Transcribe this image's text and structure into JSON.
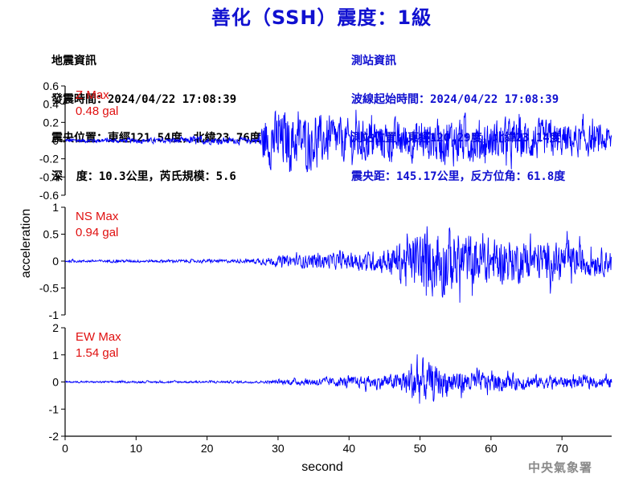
{
  "title": "善化（SSH）震度：1級",
  "quake_info": {
    "header": "地震資訊",
    "origin_time": "發震時間：2024/04/22 17:08:39",
    "epicenter": "震央位置：東經121.54度，北緯23.76度",
    "depth_mag": "深  度：10.3公里，芮氏規模：5.6"
  },
  "station_info": {
    "header": "測站資訊",
    "wave_start": "波線起始時間：2024/04/22 17:08:39",
    "station_pos": "測站位置：東經120.29度，北緯23.14度",
    "distance": "震央距：145.17公里，反方位角：61.8度"
  },
  "agency": "中央氣象署",
  "colors": {
    "trace": "#0000ff",
    "label": "#e01010",
    "title": "#1010d0",
    "axis": "#000000"
  },
  "chart_data": {
    "type": "line",
    "xlabel": "second",
    "ylabel": "acceleration",
    "xlim": [
      0,
      77
    ],
    "xticks": [
      0,
      10,
      20,
      30,
      40,
      50,
      60,
      70
    ],
    "panels": [
      {
        "component": "Z",
        "max_label": "Z Max",
        "max_value": "0.48 gal",
        "ylim": [
          -0.6,
          0.6
        ],
        "yticks": [
          0.6,
          0.4,
          0.2,
          0,
          -0.2,
          -0.4,
          -0.6
        ],
        "ytick_labels": [
          "0.6",
          "0.4",
          "0.2",
          "0",
          "-0.2",
          "-0.4",
          "-0.6"
        ],
        "envelope": [
          [
            0,
            0.03
          ],
          [
            17,
            0.04
          ],
          [
            18,
            0.07
          ],
          [
            20,
            0.05
          ],
          [
            27,
            0.04
          ],
          [
            28,
            0.35
          ],
          [
            30,
            0.42
          ],
          [
            35,
            0.35
          ],
          [
            40,
            0.3
          ],
          [
            50,
            0.28
          ],
          [
            55,
            0.35
          ],
          [
            60,
            0.28
          ],
          [
            65,
            0.3
          ],
          [
            70,
            0.25
          ],
          [
            77,
            0.2
          ]
        ]
      },
      {
        "component": "NS",
        "max_label": "NS Max",
        "max_value": "0.94 gal",
        "ylim": [
          -1,
          1
        ],
        "yticks": [
          1,
          0.5,
          0,
          -0.5,
          -1
        ],
        "ytick_labels": [
          "1",
          "0.5",
          "0",
          "-0.5",
          "-1"
        ],
        "envelope": [
          [
            0,
            0.03
          ],
          [
            25,
            0.04
          ],
          [
            29,
            0.1
          ],
          [
            35,
            0.18
          ],
          [
            40,
            0.2
          ],
          [
            44,
            0.25
          ],
          [
            47,
            0.45
          ],
          [
            50,
            0.7
          ],
          [
            53,
            0.9
          ],
          [
            56,
            0.7
          ],
          [
            60,
            0.55
          ],
          [
            65,
            0.5
          ],
          [
            70,
            0.45
          ],
          [
            77,
            0.3
          ]
        ]
      },
      {
        "component": "EW",
        "max_label": "EW Max",
        "max_value": "1.54 gal",
        "ylim": [
          -2,
          2
        ],
        "yticks": [
          2,
          1,
          0,
          -1,
          -2
        ],
        "ytick_labels": [
          "2",
          "1",
          "0",
          "-1",
          "-2"
        ],
        "envelope": [
          [
            0,
            0.04
          ],
          [
            28,
            0.06
          ],
          [
            32,
            0.15
          ],
          [
            40,
            0.25
          ],
          [
            46,
            0.35
          ],
          [
            48,
            0.6
          ],
          [
            49.5,
            1.4
          ],
          [
            51,
            0.9
          ],
          [
            55,
            0.6
          ],
          [
            60,
            0.45
          ],
          [
            65,
            0.35
          ],
          [
            70,
            0.3
          ],
          [
            77,
            0.25
          ]
        ]
      }
    ]
  }
}
